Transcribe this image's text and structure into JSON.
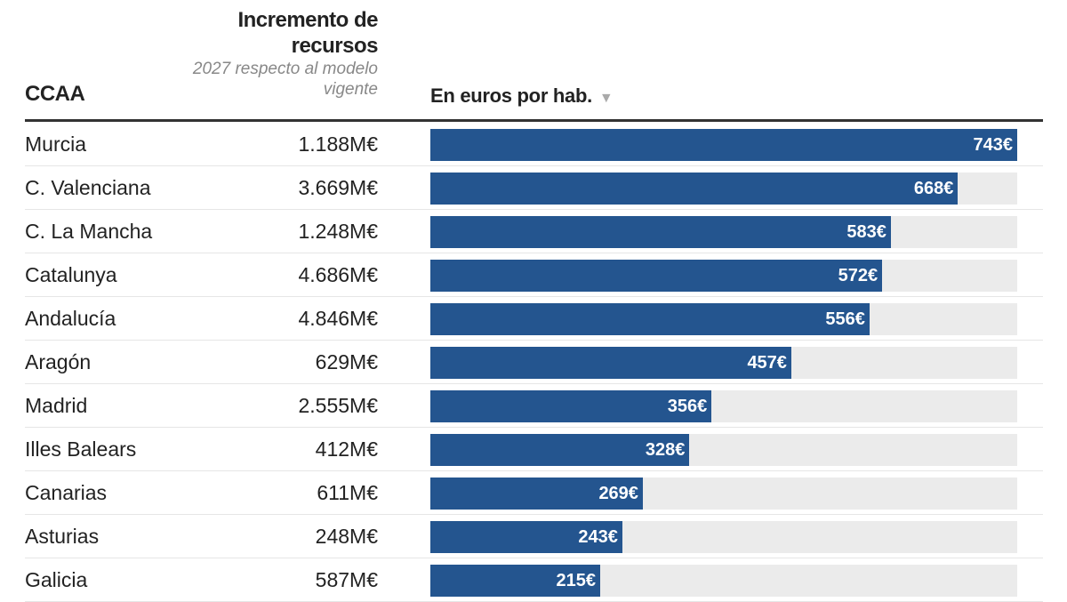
{
  "header": {
    "ccaa": "CCAA",
    "increment_title": "Incremento de recursos",
    "increment_subtitle": "2027 respecto al modelo vigente",
    "bar_title": "En euros por hab.",
    "sort_icon": "triangle-down-icon"
  },
  "colors": {
    "bar": "#24558f",
    "track": "#ebebeb"
  },
  "chart_data": {
    "type": "bar",
    "orientation": "horizontal",
    "categories": [
      "Murcia",
      "C. Valenciana",
      "C. La Mancha",
      "Catalunya",
      "Andalucía",
      "Aragón",
      "Madrid",
      "Illes Balears",
      "Canarias",
      "Asturias",
      "Galicia"
    ],
    "increments": [
      "1.188M€",
      "3.669M€",
      "1.248M€",
      "4.686M€",
      "4.846M€",
      "629M€",
      "2.555M€",
      "412M€",
      "611M€",
      "248M€",
      "587M€"
    ],
    "values": [
      743,
      668,
      583,
      572,
      556,
      457,
      356,
      328,
      269,
      243,
      215
    ],
    "labels": [
      "743€",
      "668€",
      "583€",
      "572€",
      "556€",
      "457€",
      "356€",
      "328€",
      "269€",
      "243€",
      "215€"
    ],
    "xlim": [
      0,
      743
    ]
  }
}
